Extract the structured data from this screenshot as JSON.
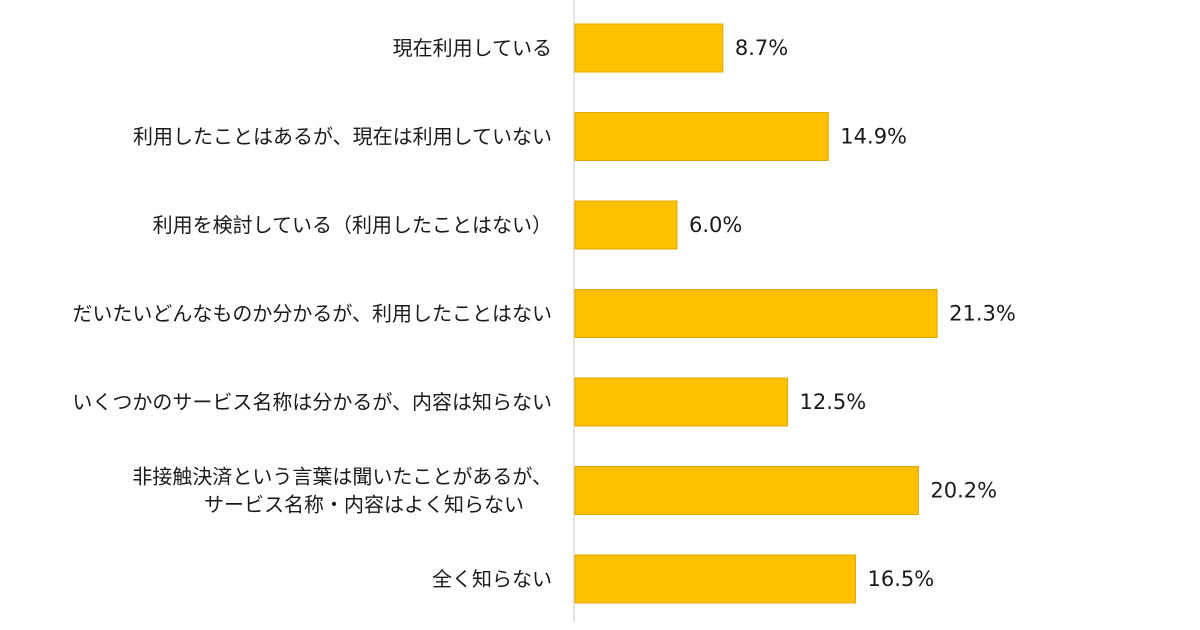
{
  "chart_data": {
    "type": "bar",
    "orientation": "horizontal",
    "categories": [
      [
        "現在利用している"
      ],
      [
        "利用したことはあるが、現在は利用していない"
      ],
      [
        "利用を検討している（利用したことはない）"
      ],
      [
        "だいたいどんなものか分かるが、利用したことはない"
      ],
      [
        "いくつかのサービス名称は分かるが、内容は知らない"
      ],
      [
        "非接触決済という言葉は聞いたことがあるが、",
        "サービス名称・内容はよく知らない"
      ],
      [
        "全く知らない"
      ]
    ],
    "values": [
      8.7,
      14.9,
      6.0,
      21.3,
      12.5,
      20.2,
      16.5
    ],
    "value_labels": [
      "8.7%",
      "14.9%",
      "6.0%",
      "21.3%",
      "12.5%",
      "20.2%",
      "16.5%"
    ],
    "xlim": [
      0,
      35
    ],
    "bar_color": "#FFC000",
    "bar_edge_color": "#E0A800",
    "axis_color": "#d9d9d9",
    "grid": false,
    "legend": "none"
  }
}
